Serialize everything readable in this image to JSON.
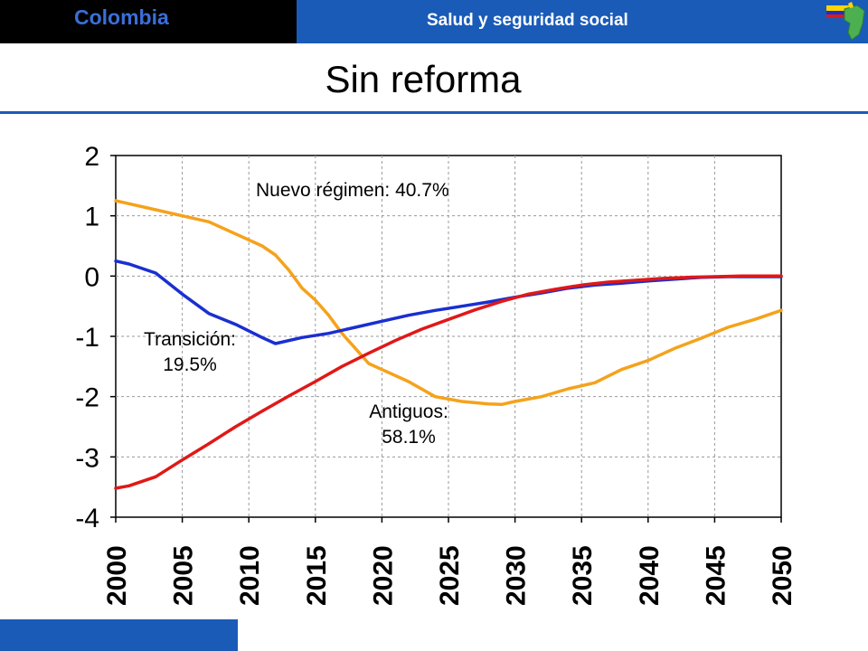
{
  "header": {
    "country": "Colombia",
    "section": "Salud y seguridad social"
  },
  "title": "Sin reforma",
  "colors": {
    "header_blue": "#1a5bb8",
    "antiguos": "#f5a21b",
    "transicion": "#1a2fd0",
    "nuevo": "#e01818"
  },
  "chart_data": {
    "type": "line",
    "xlim": [
      2000,
      2050
    ],
    "ylim": [
      -4,
      2
    ],
    "x_ticks": [
      "2000",
      "2005",
      "2010",
      "2015",
      "2020",
      "2025",
      "2030",
      "2035",
      "2040",
      "2045",
      "2050"
    ],
    "y_ticks": [
      "2",
      "1",
      "0",
      "-1",
      "-2",
      "-3",
      "-4"
    ],
    "grid": true,
    "series": [
      {
        "key": "antiguos",
        "color": "#f5a21b",
        "x": [
          2000,
          2001,
          2003,
          2005,
          2007,
          2009,
          2011,
          2012,
          2013,
          2014,
          2015,
          2016,
          2017,
          2018,
          2019,
          2020,
          2022,
          2024,
          2026,
          2028,
          2029,
          2030,
          2032,
          2034,
          2036,
          2038,
          2040,
          2042,
          2044,
          2046,
          2048,
          2050
        ],
        "y": [
          1.25,
          1.2,
          1.1,
          1.0,
          0.9,
          0.7,
          0.5,
          0.35,
          0.1,
          -0.2,
          -0.4,
          -0.65,
          -0.95,
          -1.2,
          -1.45,
          -1.55,
          -1.75,
          -2.0,
          -2.08,
          -2.12,
          -2.13,
          -2.08,
          -2.0,
          -1.87,
          -1.77,
          -1.55,
          -1.4,
          -1.2,
          -1.03,
          -0.85,
          -0.72,
          -0.57
        ]
      },
      {
        "key": "transicion",
        "color": "#1a2fd0",
        "x": [
          2000,
          2001,
          2003,
          2005,
          2007,
          2009,
          2011,
          2012,
          2014,
          2016,
          2018,
          2020,
          2022,
          2024,
          2026,
          2028,
          2030,
          2032,
          2034,
          2036,
          2038,
          2040,
          2042,
          2044,
          2046,
          2048,
          2050
        ],
        "y": [
          0.25,
          0.2,
          0.05,
          -0.3,
          -0.62,
          -0.8,
          -1.02,
          -1.12,
          -1.02,
          -0.95,
          -0.85,
          -0.75,
          -0.65,
          -0.57,
          -0.5,
          -0.43,
          -0.35,
          -0.28,
          -0.2,
          -0.15,
          -0.12,
          -0.08,
          -0.05,
          -0.02,
          -0.01,
          -0.01,
          -0.01
        ]
      },
      {
        "key": "nuevo",
        "color": "#e01818",
        "x": [
          2000,
          2001,
          2003,
          2005,
          2007,
          2009,
          2011,
          2013,
          2015,
          2017,
          2019,
          2021,
          2023,
          2025,
          2027,
          2029,
          2031,
          2033,
          2035,
          2037,
          2039,
          2041,
          2043,
          2045,
          2047,
          2050
        ],
        "y": [
          -3.52,
          -3.48,
          -3.33,
          -3.05,
          -2.78,
          -2.5,
          -2.24,
          -1.99,
          -1.75,
          -1.5,
          -1.28,
          -1.07,
          -0.88,
          -0.72,
          -0.56,
          -0.42,
          -0.3,
          -0.22,
          -0.15,
          -0.1,
          -0.07,
          -0.04,
          -0.02,
          -0.01,
          0.0,
          0.0
        ]
      }
    ],
    "annotations": {
      "nuevo": "Nuevo régimen: 40.7%",
      "transicion_name": "Transición:",
      "transicion_pct": "19.5%",
      "antiguos_name": "Antiguos:",
      "antiguos_pct": "58.1%"
    }
  }
}
